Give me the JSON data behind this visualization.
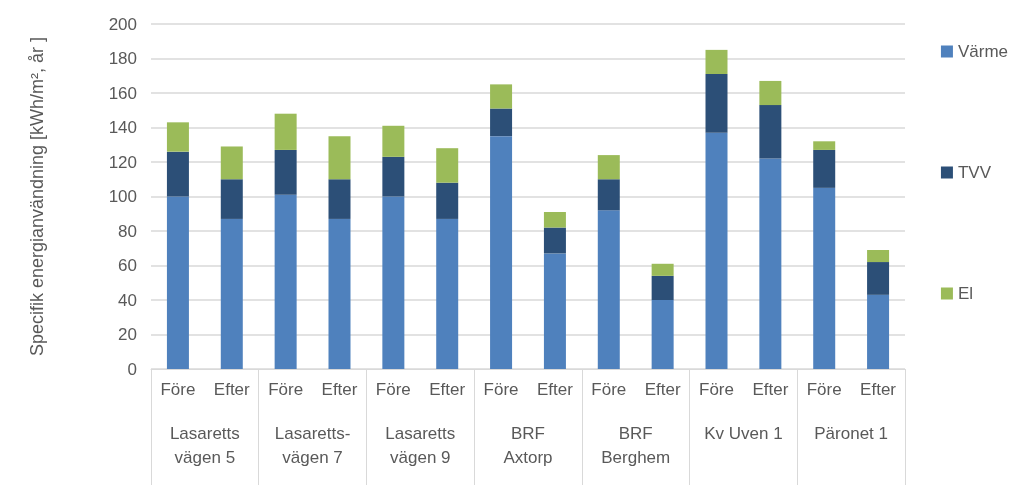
{
  "chart_data": {
    "type": "bar",
    "ylabel": "Specifik energianvändning [kWh/m², år ]",
    "categories": [
      "Före",
      "Efter",
      "Före",
      "Efter",
      "Före",
      "Efter",
      "Före",
      "Efter",
      "Före",
      "Efter",
      "Före",
      "Efter",
      "Före",
      "Efter"
    ],
    "annotations": [
      "Lasaretts\nvägen 5",
      "Lasaretts-\nvägen 7",
      "Lasaretts\nvägen 9",
      "BRF\nAxtorp",
      "BRF\nBerghem",
      "Kv Uven 1",
      "Päronet 1"
    ],
    "stacked": true,
    "series": [
      {
        "name": "Värme",
        "color": "#4f81bd",
        "values": [
          100,
          87,
          101,
          87,
          100,
          87,
          135,
          67,
          92,
          40,
          137,
          122,
          105,
          43
        ]
      },
      {
        "name": "TVV",
        "color": "#2c4f77",
        "values": [
          26,
          23,
          26,
          23,
          23,
          21,
          16,
          15,
          18,
          14,
          34,
          31,
          22,
          19
        ]
      },
      {
        "name": "El",
        "color": "#9bbb59",
        "values": [
          17,
          19,
          21,
          25,
          18,
          20,
          14,
          9,
          14,
          7,
          14,
          14,
          5,
          7
        ]
      }
    ],
    "ylim": [
      0,
      200
    ],
    "yticks": [
      0,
      20,
      40,
      60,
      80,
      100,
      120,
      140,
      160,
      180,
      200
    ],
    "grid": true,
    "legend": "right"
  }
}
